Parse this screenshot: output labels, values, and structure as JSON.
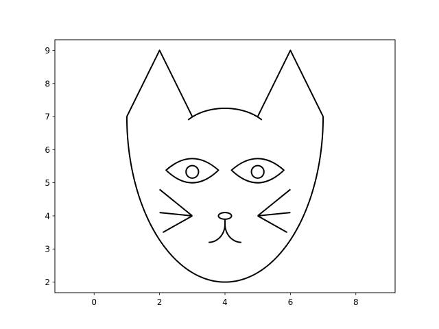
{
  "chart_data": {
    "type": "line",
    "title": "",
    "xlabel": "",
    "ylabel": "",
    "xlim": [
      -1.2,
      9.2
    ],
    "ylim": [
      1.68,
      9.32
    ],
    "grid": false,
    "legend": "none",
    "x_ticks": [
      0,
      2,
      4,
      6,
      8
    ],
    "y_ticks": [
      2,
      3,
      4,
      5,
      6,
      7,
      8,
      9
    ],
    "line_color": "#000000",
    "series": [
      {
        "x": [
          1,
          2,
          3
        ],
        "y": [
          7,
          9,
          7
        ]
      },
      {
        "x": [
          5,
          6,
          7
        ],
        "y": [
          7,
          9,
          7
        ]
      },
      {
        "shape": "arc",
        "cx": 4,
        "cy": 6.3,
        "rx": 1.45,
        "ry": 0.95,
        "from_deg": 141,
        "to_deg": 39
      },
      {
        "shape": "half-ellipse",
        "cx": 4,
        "cy": 7,
        "rx": 3,
        "ry": 5,
        "from_deg": 180,
        "to_deg": 360
      },
      {
        "shape": "lens",
        "x_left": 2.2,
        "x_right": 3.8,
        "y_mid": 5.38,
        "top": 5.73,
        "bottom": 5.0
      },
      {
        "shape": "lens",
        "x_left": 4.2,
        "x_right": 5.8,
        "y_mid": 5.38,
        "top": 5.73,
        "bottom": 5.0
      },
      {
        "shape": "circle",
        "cx": 3,
        "cy": 5.33,
        "r": 0.19
      },
      {
        "shape": "circle",
        "cx": 5,
        "cy": 5.33,
        "r": 0.19
      },
      {
        "shape": "ellipse",
        "cx": 4,
        "cy": 4,
        "rx": 0.2,
        "ry": 0.1
      },
      {
        "x": [
          4,
          4
        ],
        "y": [
          3.9,
          3.75
        ]
      },
      {
        "shape": "arc",
        "cx": 3.5,
        "cy": 3.75,
        "rx": 0.5,
        "ry": 0.55,
        "from_deg": 0,
        "to_deg": -90
      },
      {
        "shape": "arc",
        "cx": 4.5,
        "cy": 3.75,
        "rx": 0.5,
        "ry": 0.55,
        "from_deg": 180,
        "to_deg": 270
      },
      {
        "x": [
          3,
          2
        ],
        "y": [
          4,
          4.8
        ]
      },
      {
        "x": [
          3,
          2
        ],
        "y": [
          4,
          4.1
        ]
      },
      {
        "x": [
          3,
          2.1
        ],
        "y": [
          4,
          3.5
        ]
      },
      {
        "x": [
          5,
          6
        ],
        "y": [
          4,
          4.8
        ]
      },
      {
        "x": [
          5,
          6
        ],
        "y": [
          4,
          4.1
        ]
      },
      {
        "x": [
          5,
          5.9
        ],
        "y": [
          4,
          3.5
        ]
      }
    ]
  }
}
